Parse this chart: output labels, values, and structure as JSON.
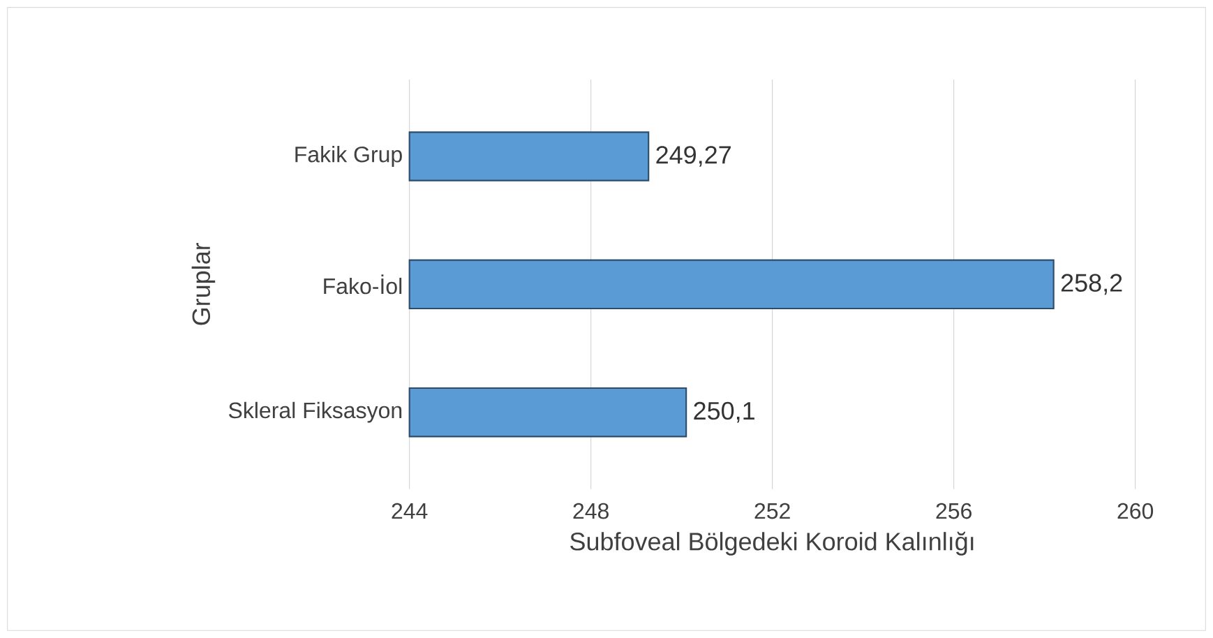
{
  "chart_data": {
    "type": "bar",
    "orientation": "horizontal",
    "xlabel": "Subfoveal Bölgedeki Koroid Kalınlığı",
    "ylabel": "Gruplar",
    "categories": [
      "Fakik Grup",
      "Fako-İol",
      "Skleral Fiksasyon"
    ],
    "values": [
      249.27,
      258.2,
      250.1
    ],
    "value_labels": [
      "249,27",
      "258,2",
      "250,1"
    ],
    "color": "#5b9bd5",
    "xlim": [
      244,
      260
    ],
    "xticks": [
      244,
      248,
      252,
      256,
      260
    ],
    "grid": "x"
  }
}
